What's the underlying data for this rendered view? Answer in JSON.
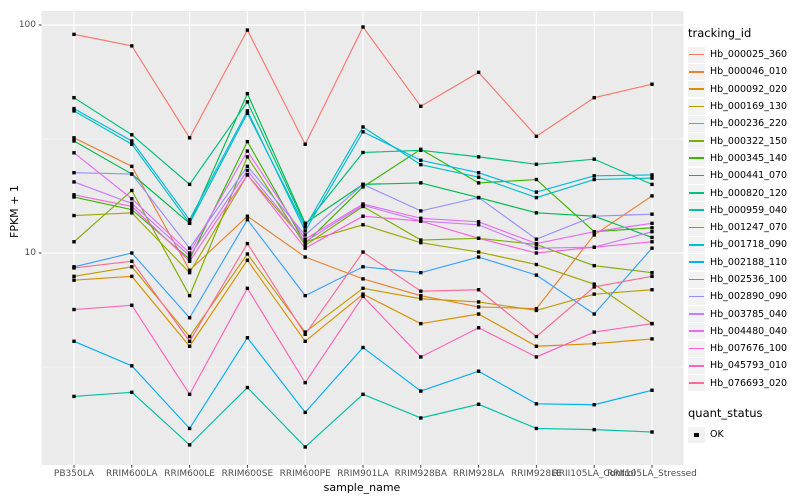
{
  "chart_data": {
    "type": "line",
    "title": "",
    "xlabel": "sample_name",
    "ylabel": "FPKM + 1",
    "y_scale": "log10",
    "ylim": [
      1.2,
      115
    ],
    "y_ticks": [
      100,
      10
    ],
    "y_minor_gridlines": [
      31.62,
      3.162
    ],
    "grid": true,
    "panel_bg": "#ebebeb",
    "grid_color": "#ffffff",
    "point_shape": "black-square",
    "point_color": "#000000",
    "legend_position": "right",
    "categories": [
      "PB350LA",
      "RRIM600LA",
      "RRIM600LE",
      "RRIM600SE",
      "RRIM600PE",
      "RRIM901LA",
      "RRIM928BA",
      "RRIM928LA",
      "RRIM928LE",
      "RRII105LA_Control",
      "RRII105LA_Stressed"
    ],
    "series": [
      {
        "name": "Hb_000025_360",
        "color": "#F8766D",
        "values": [
          91,
          81,
          32,
          95,
          30,
          98,
          44,
          62,
          32.5,
          48,
          55
        ]
      },
      {
        "name": "Hb_000046_010",
        "color": "#EA8331",
        "values": [
          32,
          24,
          8.4,
          14.5,
          9.6,
          7.7,
          6.5,
          5.8,
          5.7,
          12,
          17.8
        ]
      },
      {
        "name": "Hb_000092_020",
        "color": "#D89000",
        "values": [
          7.6,
          7.9,
          3.9,
          9.3,
          4.1,
          6.6,
          4.9,
          5.4,
          3.9,
          4.0,
          4.2
        ]
      },
      {
        "name": "Hb_000169_130",
        "color": "#C09B00",
        "values": [
          7.9,
          8.7,
          4.3,
          9.9,
          4.5,
          7.0,
          6.3,
          6.1,
          5.6,
          6.6,
          6.9
        ]
      },
      {
        "name": "Hb_000236_220",
        "color": "#A3A500",
        "values": [
          14.6,
          15.0,
          8.2,
          22,
          11.2,
          13.3,
          11.1,
          10.1,
          8.9,
          7.3,
          4.9
        ]
      },
      {
        "name": "Hb_000322_150",
        "color": "#7CAE00",
        "values": [
          11.2,
          18.8,
          6.5,
          26.4,
          10.8,
          16.0,
          11.4,
          11.6,
          10.9,
          8.8,
          8.2
        ]
      },
      {
        "name": "Hb_000345_140",
        "color": "#39B600",
        "values": [
          17.6,
          15.5,
          9.4,
          30.8,
          11.0,
          19.5,
          28.5,
          20.3,
          21.0,
          12.4,
          12.9
        ]
      },
      {
        "name": "Hb_000441_070",
        "color": "#00BB4E",
        "values": [
          31,
          22.2,
          13.5,
          50,
          13.5,
          20,
          20.3,
          17.5,
          15,
          14.5,
          11.7
        ]
      },
      {
        "name": "Hb_000820_120",
        "color": "#00BF7D",
        "values": [
          48,
          33,
          20,
          46,
          13.3,
          27.6,
          28.2,
          26.4,
          24.5,
          25.8,
          20
        ]
      },
      {
        "name": "Hb_000959_040",
        "color": "#00C1A3",
        "values": [
          2.35,
          2.45,
          1.44,
          2.57,
          1.41,
          2.4,
          1.89,
          2.17,
          1.7,
          1.68,
          1.64
        ]
      },
      {
        "name": "Hb_001247_070",
        "color": "#00BFC4",
        "values": [
          42,
          30,
          13.5,
          41,
          13,
          35.7,
          24.4,
          21.5,
          17.5,
          21,
          21.3
        ]
      },
      {
        "name": "Hb_001718_090",
        "color": "#00BAE0",
        "values": [
          43,
          31,
          14,
          42,
          12.5,
          34,
          25.5,
          22.5,
          18.5,
          21.8,
          22
        ]
      },
      {
        "name": "Hb_002188_110",
        "color": "#00B0F6",
        "values": [
          4.1,
          3.2,
          1.7,
          4.25,
          2.0,
          3.85,
          2.48,
          3.03,
          2.18,
          2.16,
          2.5
        ]
      },
      {
        "name": "Hb_002536_100",
        "color": "#35A2FF",
        "values": [
          8.7,
          10,
          5.2,
          14,
          6.5,
          8.7,
          8.2,
          9.6,
          8.0,
          5.4,
          10.5
        ]
      },
      {
        "name": "Hb_002890_090",
        "color": "#9590FF",
        "values": [
          22.5,
          22.2,
          10.5,
          24,
          12,
          20,
          15.3,
          17.5,
          11.5,
          14.5,
          14.8
        ]
      },
      {
        "name": "Hb_003785_040",
        "color": "#C77CFF",
        "values": [
          20.5,
          16.5,
          9.7,
          23,
          11.2,
          16.2,
          13.8,
          13.3,
          10.5,
          10.6,
          12.4
        ]
      },
      {
        "name": "Hb_004480_040",
        "color": "#E76BF3",
        "values": [
          27.5,
          17.3,
          10,
          28,
          11.5,
          16.4,
          14.2,
          13.7,
          11.0,
          12.4,
          13.5
        ]
      },
      {
        "name": "Hb_007676_100",
        "color": "#FA62DB",
        "values": [
          18,
          16,
          9.2,
          22,
          10.5,
          14.5,
          13.8,
          11.6,
          10.0,
          10.6,
          11.2
        ]
      },
      {
        "name": "Hb_045793_010",
        "color": "#FF62BC",
        "values": [
          5.65,
          5.9,
          2.4,
          7.0,
          2.7,
          6.45,
          3.5,
          4.7,
          3.5,
          4.5,
          4.9
        ]
      },
      {
        "name": "Hb_076693_020",
        "color": "#FF6A98",
        "values": [
          8.6,
          9.2,
          4.1,
          11,
          4.4,
          10.1,
          6.8,
          6.9,
          4.3,
          7.1,
          7.9
        ]
      }
    ]
  },
  "legend": {
    "title": "tracking_id"
  },
  "legend2": {
    "title": "quant_status",
    "items": [
      {
        "label": "OK"
      }
    ]
  }
}
